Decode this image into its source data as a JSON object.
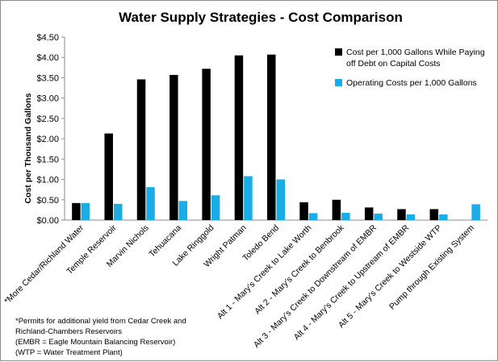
{
  "chart_data": {
    "type": "bar",
    "title": "Water Supply Strategies - Cost Comparison",
    "xlabel": "",
    "ylabel": "Cost per Thousand Gallons",
    "ylim": [
      0,
      4.5
    ],
    "yticks": [
      "$0.00",
      "$0.50",
      "$1.00",
      "$1.50",
      "$2.00",
      "$2.50",
      "$3.00",
      "$3.50",
      "$4.00",
      "$4.50"
    ],
    "grid": false,
    "legend_position": "top-right",
    "categories": [
      "*More Cedar/Richland Water",
      "Temple Reservoir",
      "Marvin Nichols",
      "Tehuacana",
      "Lake Ringgold",
      "Wright Patman",
      "Toledo Bend",
      "Alt 1 - Mary's Creek to Lake Worth",
      "Alt 2 - Mary's Creek to Benbrook",
      "Alt 3 - Mary's Creek to Downstream of EMBR",
      "Alt 4 - Mary's Creek to Upstream of EMBR",
      "Alt 5 - Mary's Creek to Westside WTP",
      "Pump through Existing System"
    ],
    "series": [
      {
        "name": "Cost per 1,000 Gallons While Paying off Debt on Capital Costs",
        "color": "#000000",
        "values": [
          0.42,
          2.13,
          3.46,
          3.57,
          3.72,
          4.05,
          4.07,
          0.44,
          0.5,
          0.31,
          0.27,
          0.27,
          0.0
        ]
      },
      {
        "name": "Operating Costs per 1,000 Gallons",
        "color": "#1aace4",
        "values": [
          0.42,
          0.4,
          0.81,
          0.47,
          0.61,
          1.08,
          1.0,
          0.17,
          0.18,
          0.16,
          0.14,
          0.14,
          0.39
        ]
      }
    ],
    "legend": {
      "series1_lines": [
        "Cost per 1,000 Gallons While Paying",
        "off Debt on Capital Costs"
      ],
      "series2_lines": [
        "Operating Costs per 1,000 Gallons"
      ]
    },
    "footnote_lines": [
      "*Permits for additional yield from Cedar Creek and",
      "Richland-Chambers Reservoirs",
      "(EMBR = Eagle Mountain  Balancing Reservoir)",
      "(WTP = Water Treatment Plant)"
    ]
  }
}
